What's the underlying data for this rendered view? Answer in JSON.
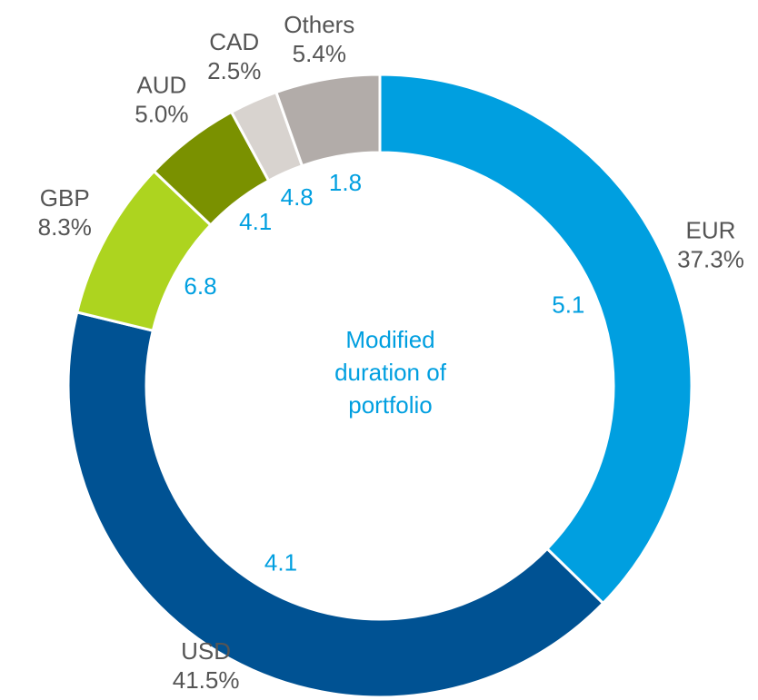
{
  "chart_data": {
    "type": "donut",
    "center_label": "Modified duration of portfolio",
    "categories": [
      "EUR",
      "USD",
      "GBP",
      "AUD",
      "CAD",
      "Others"
    ],
    "values": [
      37.3,
      41.5,
      8.3,
      5,
      2.5,
      5.4
    ],
    "value_labels": [
      "37.3%",
      "41.5%",
      "8.3%",
      "5.0%",
      "2.5%",
      "5.4%"
    ],
    "durations": [
      5.1,
      4.1,
      6.8,
      4.1,
      4.8,
      1.8
    ],
    "colors": [
      "#009fe0",
      "#005293",
      "#add41f",
      "#7a9100",
      "#d8d3cf",
      "#b2aca9"
    ]
  }
}
